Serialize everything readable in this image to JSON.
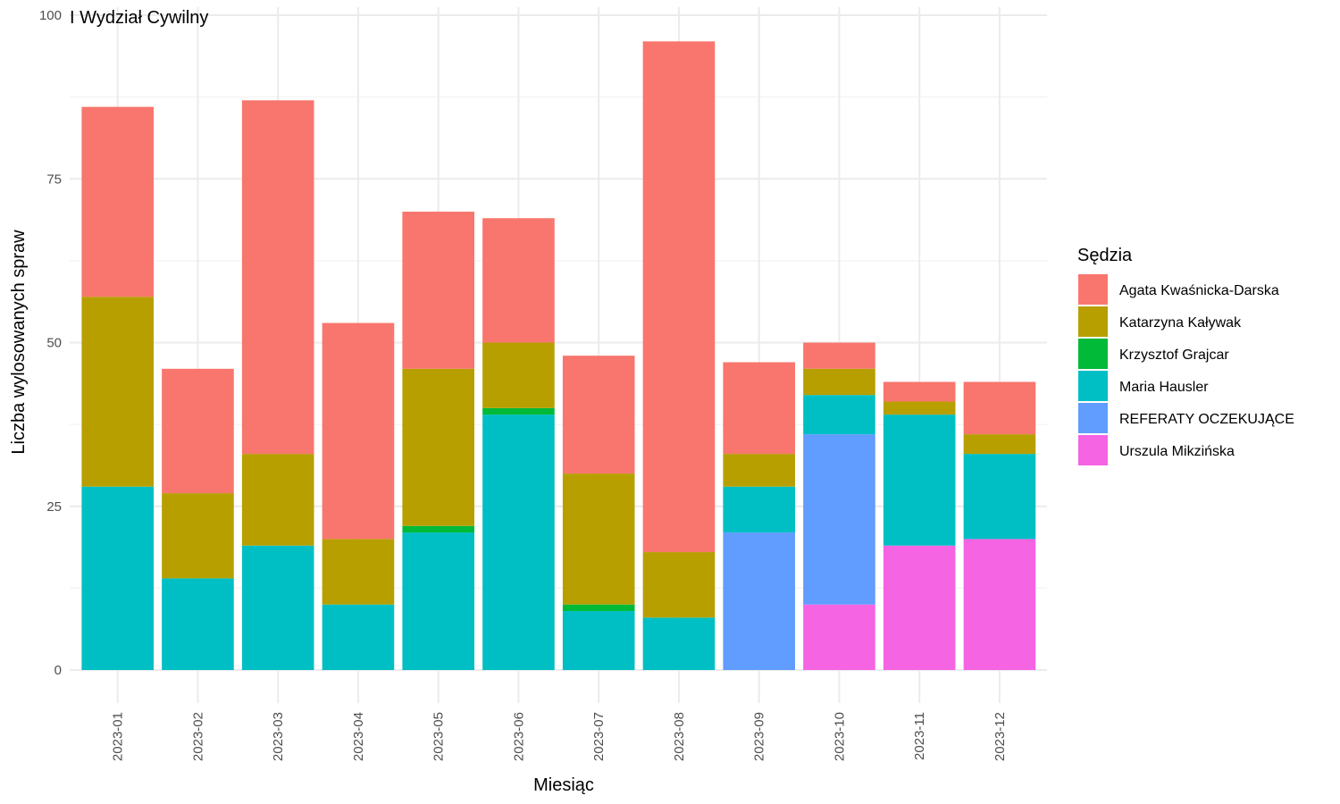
{
  "chart_data": {
    "type": "bar",
    "stacked": true,
    "title": "I Wydział Cywilny",
    "xlabel": "Miesiąc",
    "ylabel": "Liczba wylosowanych spraw",
    "ylim": [
      0,
      100
    ],
    "yticks": [
      0,
      25,
      50,
      75,
      100
    ],
    "grid": true,
    "legend": {
      "title": "Sędzia",
      "position": "right"
    },
    "categories": [
      "2023-01",
      "2023-02",
      "2023-03",
      "2023-04",
      "2023-05",
      "2023-06",
      "2023-07",
      "2023-08",
      "2023-09",
      "2023-10",
      "2023-11",
      "2023-12"
    ],
    "stack_order_bottom_to_top": [
      "Urszula Mikzińska",
      "REFERATY OCZEKUJĄCE",
      "Maria Hausler",
      "Krzysztof Grajcar",
      "Katarzyna Kaływak",
      "Agata Kwaśnicka-Darska"
    ],
    "series": [
      {
        "name": "Agata Kwaśnicka-Darska",
        "color": "#F8766D",
        "values": [
          29,
          19,
          54,
          33,
          24,
          19,
          18,
          78,
          14,
          4,
          3,
          8
        ]
      },
      {
        "name": "Katarzyna Kaływak",
        "color": "#B79F00",
        "values": [
          29,
          13,
          14,
          10,
          24,
          10,
          20,
          10,
          5,
          4,
          2,
          3
        ]
      },
      {
        "name": "Krzysztof Grajcar",
        "color": "#00BA38",
        "values": [
          0,
          0,
          0,
          0,
          1,
          1,
          1,
          0,
          0,
          0,
          0,
          0
        ]
      },
      {
        "name": "Maria Hausler",
        "color": "#00BFC4",
        "values": [
          28,
          14,
          19,
          10,
          21,
          39,
          9,
          8,
          7,
          6,
          20,
          13
        ]
      },
      {
        "name": "REFERATY OCZEKUJĄCE",
        "color": "#619CFF",
        "values": [
          0,
          0,
          0,
          0,
          0,
          0,
          0,
          0,
          21,
          26,
          0,
          0
        ]
      },
      {
        "name": "Urszula Mikzińska",
        "color": "#F564E3",
        "values": [
          0,
          0,
          0,
          0,
          0,
          0,
          0,
          0,
          0,
          10,
          19,
          20
        ]
      }
    ]
  }
}
